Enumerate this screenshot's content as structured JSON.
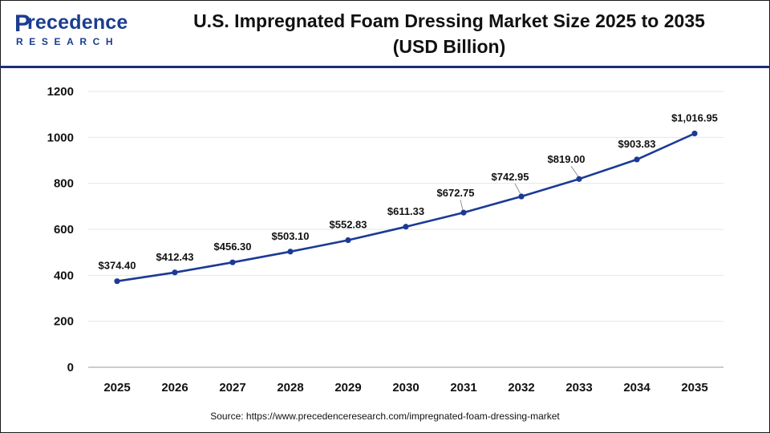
{
  "header": {
    "logo_main": "recedence",
    "logo_initial": "P",
    "logo_sub": "RESEARCH",
    "title_line1": "U.S. Impregnated Foam Dressing Market Size 2025 to 2035",
    "title_line2": "(USD Billion)"
  },
  "footer": {
    "source": "Source: https://www.precedenceresearch.com/impregnated-foam-dressing-market"
  },
  "colors": {
    "line": "#1b3a96",
    "marker": "#1b3a96",
    "brand": "#1a3d8f",
    "rule": "#1a2f7a",
    "grid": "#e6e6e6"
  },
  "chart_data": {
    "type": "line",
    "title": "U.S. Impregnated Foam Dressing Market Size 2025 to 2035 (USD Billion)",
    "xlabel": "",
    "ylabel": "",
    "categories": [
      "2025",
      "2026",
      "2027",
      "2028",
      "2029",
      "2030",
      "2031",
      "2032",
      "2033",
      "2034",
      "2035"
    ],
    "series": [
      {
        "values": [
          374.4,
          412.43,
          456.3,
          503.1,
          552.83,
          611.33,
          672.75,
          742.95,
          819.0,
          903.83,
          1016.95
        ],
        "labels": [
          "$374.40",
          "$412.43",
          "$456.30",
          "$503.10",
          "$552.83",
          "$611.33",
          "$672.75",
          "$742.95",
          "$819.00",
          "$903.83",
          "$1,016.95"
        ]
      }
    ],
    "ylim": [
      0,
      1200
    ],
    "yticks": [
      0,
      200,
      400,
      600,
      800,
      1000,
      1200
    ],
    "grid": true,
    "legend": "none"
  }
}
